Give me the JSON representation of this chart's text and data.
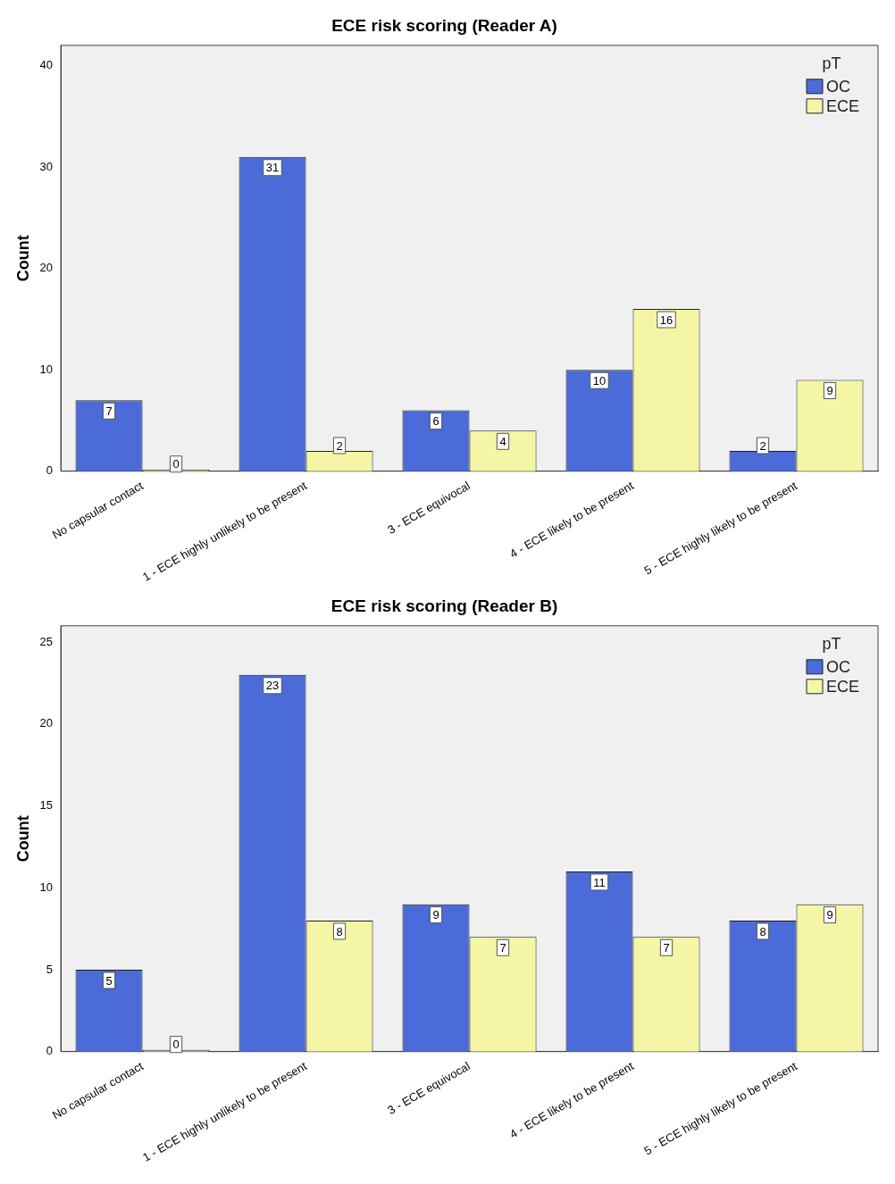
{
  "chart_data": [
    {
      "type": "bar",
      "title": "ECE risk scoring (Reader A)",
      "ylabel": "Count",
      "legend_title": "pT",
      "categories": [
        "No capsular contact",
        "1 - ECE highly unlikely to be present",
        "3 - ECE equivocal",
        "4 - ECE likely to be present",
        "5 - ECE highly likely to be present"
      ],
      "series": [
        {
          "name": "OC",
          "color": "#4a6bd8",
          "values": [
            7,
            31,
            6,
            10,
            2
          ]
        },
        {
          "name": "ECE",
          "color": "#f5f5a6",
          "values": [
            0,
            2,
            4,
            16,
            9
          ]
        }
      ],
      "ylim": [
        0,
        42
      ],
      "yticks": [
        0,
        10,
        20,
        30,
        40
      ],
      "grid": false,
      "legend": "top right",
      "data_labels": true
    },
    {
      "type": "bar",
      "title": "ECE risk scoring (Reader B)",
      "ylabel": "Count",
      "legend_title": "pT",
      "categories": [
        "No capsular contact",
        "1 - ECE highly unlikely to be present",
        "3 - ECE equivocal",
        "4 - ECE likely to be present",
        "5 - ECE highly likely to be present"
      ],
      "series": [
        {
          "name": "OC",
          "color": "#4a6bd8",
          "values": [
            5,
            23,
            9,
            11,
            8
          ]
        },
        {
          "name": "ECE",
          "color": "#f5f5a6",
          "values": [
            0,
            8,
            7,
            7,
            9
          ]
        }
      ],
      "ylim": [
        0,
        26
      ],
      "yticks": [
        0,
        5,
        10,
        15,
        20,
        25
      ],
      "grid": false,
      "legend": "top right",
      "data_labels": true
    }
  ]
}
